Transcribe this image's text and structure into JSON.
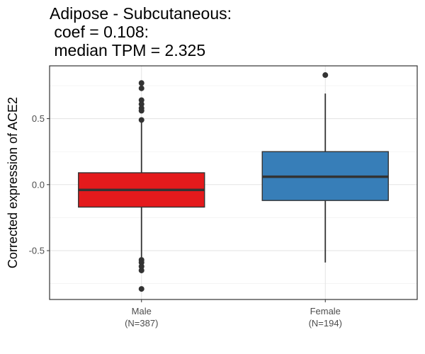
{
  "chart_data": {
    "type": "box",
    "title_lines": [
      "Adipose - Subcutaneous:",
      " coef = 0.108:",
      " median TPM = 2.325"
    ],
    "ylabel": "Corrected expression of ACE2",
    "xlabel": "",
    "ylim": [
      -0.87,
      0.9
    ],
    "y_ticks": [
      -0.5,
      0.0,
      0.5
    ],
    "y_tick_labels": [
      "-0.5",
      "0.0",
      "0.5"
    ],
    "grid": true,
    "legend": "none",
    "categories": [
      "Male",
      "Female"
    ],
    "category_counts": [
      "(N=387)",
      "(N=194)"
    ],
    "boxes": [
      {
        "category": "Male",
        "n_label": "(N=387)",
        "q1": -0.17,
        "median": -0.04,
        "q3": 0.09,
        "whisker_low": -0.55,
        "whisker_high": 0.48,
        "outliers": [
          0.77,
          0.73,
          0.64,
          0.61,
          0.58,
          0.56,
          0.49,
          -0.57,
          -0.59,
          -0.62,
          -0.65,
          -0.79
        ],
        "color": "#E41A1C"
      },
      {
        "category": "Female",
        "n_label": "(N=194)",
        "q1": -0.12,
        "median": 0.06,
        "q3": 0.25,
        "whisker_low": -0.59,
        "whisker_high": 0.69,
        "outliers": [
          0.83
        ],
        "color": "#377EB8"
      }
    ]
  }
}
